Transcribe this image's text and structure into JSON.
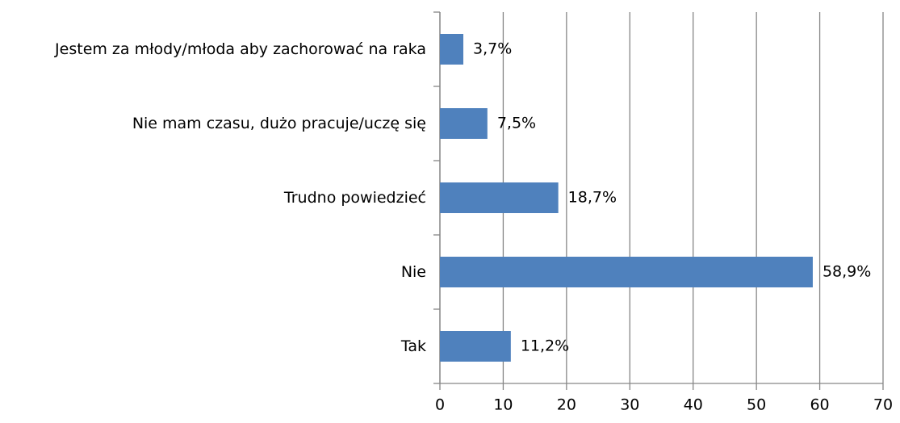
{
  "chart_data": {
    "type": "hbar",
    "categories": [
      "Jestem za młody/młoda aby zachorować na raka",
      "Nie mam czasu, dużo pracuje/uczę się",
      "Trudno powiedzieć",
      "Nie",
      "Tak"
    ],
    "values": [
      3.7,
      7.5,
      18.7,
      58.9,
      11.2
    ],
    "value_labels": [
      "3,7%",
      "7,5%",
      "18,7%",
      "58,9%",
      "11,2%"
    ],
    "color": "#4f81bd",
    "xlim": [
      0,
      70
    ],
    "xticks": [
      0,
      10,
      20,
      30,
      40,
      50,
      60,
      70
    ],
    "grid": true
  }
}
